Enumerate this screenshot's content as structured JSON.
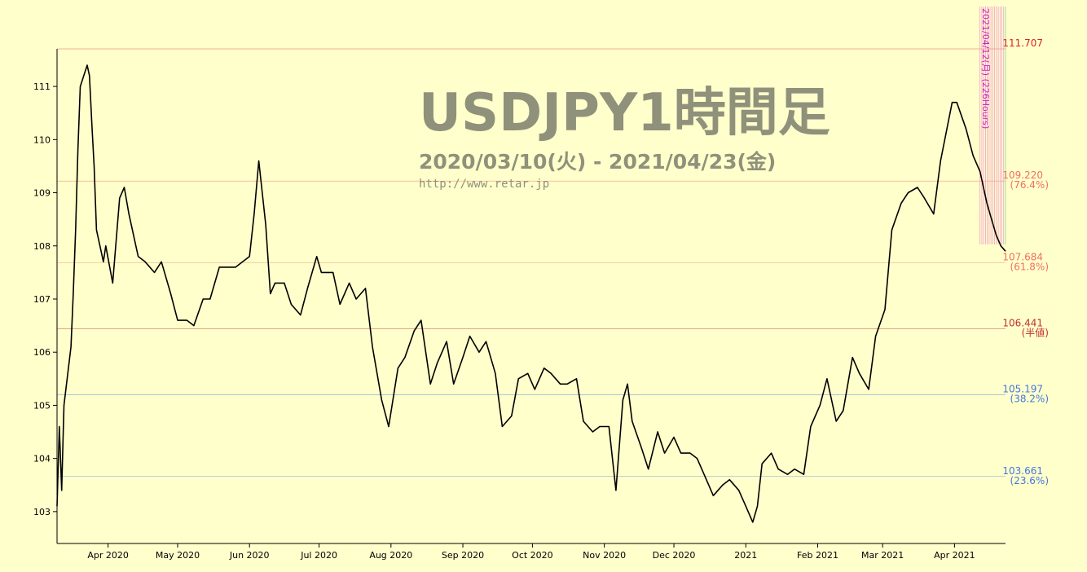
{
  "chart_data": {
    "type": "line",
    "title": "USDJPY1時間足",
    "subtitle": "2020/03/10(火) - 2021/04/23(金)",
    "url": "http://www.retar.jp",
    "xlabel": "",
    "ylabel": "",
    "x_range": [
      "2020-03-10",
      "2021-04-23"
    ],
    "ylim": [
      102.4,
      111.707
    ],
    "yticks": [
      103,
      104,
      105,
      106,
      107,
      108,
      109,
      110,
      111
    ],
    "xticks": [
      {
        "date": "2020-04-01",
        "label": "Apr 2020"
      },
      {
        "date": "2020-05-01",
        "label": "May 2020"
      },
      {
        "date": "2020-06-01",
        "label": "Jun 2020"
      },
      {
        "date": "2020-07-01",
        "label": "Jul 2020"
      },
      {
        "date": "2020-08-01",
        "label": "Aug 2020"
      },
      {
        "date": "2020-09-01",
        "label": "Sep 2020"
      },
      {
        "date": "2020-10-01",
        "label": "Oct 2020"
      },
      {
        "date": "2020-11-01",
        "label": "Nov 2020"
      },
      {
        "date": "2020-12-01",
        "label": "Dec 2020"
      },
      {
        "date": "2021-01-01",
        "label": "2021"
      },
      {
        "date": "2021-02-01",
        "label": "Feb 2021"
      },
      {
        "date": "2021-03-01",
        "label": "Mar 2021"
      },
      {
        "date": "2021-04-01",
        "label": "Apr 2021"
      }
    ],
    "levels": [
      {
        "value": 111.707,
        "label": "111.707",
        "pct": "",
        "color": "#dd2222"
      },
      {
        "value": 109.22,
        "label": "109.220",
        "pct": "(76.4%)",
        "color": "#f07060"
      },
      {
        "value": 107.684,
        "label": "107.684",
        "pct": "(61.8%)",
        "color": "#f07060"
      },
      {
        "value": 106.441,
        "label": "106.441",
        "pct": "(半値)",
        "color": "#c03030"
      },
      {
        "value": 105.197,
        "label": "105.197",
        "pct": "(38.2%)",
        "color": "#4477dd"
      },
      {
        "value": 103.661,
        "label": "103.661",
        "pct": "(23.6%)",
        "color": "#4477dd"
      }
    ],
    "annotation": "2021/04/12(月) (226Hours)",
    "series": [
      {
        "color": "#000000",
        "points": [
          [
            "2020-03-10",
            103.1
          ],
          [
            "2020-03-11",
            104.6
          ],
          [
            "2020-03-12",
            103.4
          ],
          [
            "2020-03-13",
            105.0
          ],
          [
            "2020-03-16",
            106.1
          ],
          [
            "2020-03-17",
            107.1
          ],
          [
            "2020-03-18",
            108.3
          ],
          [
            "2020-03-19",
            109.8
          ],
          [
            "2020-03-20",
            111.0
          ],
          [
            "2020-03-23",
            111.4
          ],
          [
            "2020-03-24",
            111.2
          ],
          [
            "2020-03-25",
            110.3
          ],
          [
            "2020-03-26",
            109.5
          ],
          [
            "2020-03-27",
            108.3
          ],
          [
            "2020-03-30",
            107.7
          ],
          [
            "2020-03-31",
            108.0
          ],
          [
            "2020-04-03",
            107.3
          ],
          [
            "2020-04-06",
            108.9
          ],
          [
            "2020-04-08",
            109.1
          ],
          [
            "2020-04-10",
            108.6
          ],
          [
            "2020-04-14",
            107.8
          ],
          [
            "2020-04-17",
            107.7
          ],
          [
            "2020-04-21",
            107.5
          ],
          [
            "2020-04-24",
            107.7
          ],
          [
            "2020-04-28",
            107.1
          ],
          [
            "2020-05-01",
            106.6
          ],
          [
            "2020-05-05",
            106.6
          ],
          [
            "2020-05-08",
            106.5
          ],
          [
            "2020-05-12",
            107.0
          ],
          [
            "2020-05-15",
            107.0
          ],
          [
            "2020-05-19",
            107.6
          ],
          [
            "2020-05-22",
            107.6
          ],
          [
            "2020-05-26",
            107.6
          ],
          [
            "2020-05-29",
            107.7
          ],
          [
            "2020-06-01",
            107.8
          ],
          [
            "2020-06-03",
            108.6
          ],
          [
            "2020-06-05",
            109.6
          ],
          [
            "2020-06-08",
            108.4
          ],
          [
            "2020-06-10",
            107.1
          ],
          [
            "2020-06-12",
            107.3
          ],
          [
            "2020-06-16",
            107.3
          ],
          [
            "2020-06-19",
            106.9
          ],
          [
            "2020-06-23",
            106.7
          ],
          [
            "2020-06-26",
            107.2
          ],
          [
            "2020-06-30",
            107.8
          ],
          [
            "2020-07-02",
            107.5
          ],
          [
            "2020-07-07",
            107.5
          ],
          [
            "2020-07-10",
            106.9
          ],
          [
            "2020-07-14",
            107.3
          ],
          [
            "2020-07-17",
            107.0
          ],
          [
            "2020-07-21",
            107.2
          ],
          [
            "2020-07-24",
            106.1
          ],
          [
            "2020-07-28",
            105.1
          ],
          [
            "2020-07-31",
            104.6
          ],
          [
            "2020-08-04",
            105.7
          ],
          [
            "2020-08-07",
            105.9
          ],
          [
            "2020-08-11",
            106.4
          ],
          [
            "2020-08-14",
            106.6
          ],
          [
            "2020-08-18",
            105.4
          ],
          [
            "2020-08-21",
            105.8
          ],
          [
            "2020-08-25",
            106.2
          ],
          [
            "2020-08-28",
            105.4
          ],
          [
            "2020-09-01",
            105.9
          ],
          [
            "2020-09-04",
            106.3
          ],
          [
            "2020-09-08",
            106.0
          ],
          [
            "2020-09-11",
            106.2
          ],
          [
            "2020-09-15",
            105.6
          ],
          [
            "2020-09-18",
            104.6
          ],
          [
            "2020-09-22",
            104.8
          ],
          [
            "2020-09-25",
            105.5
          ],
          [
            "2020-09-29",
            105.6
          ],
          [
            "2020-10-02",
            105.3
          ],
          [
            "2020-10-06",
            105.7
          ],
          [
            "2020-10-09",
            105.6
          ],
          [
            "2020-10-13",
            105.4
          ],
          [
            "2020-10-16",
            105.4
          ],
          [
            "2020-10-20",
            105.5
          ],
          [
            "2020-10-23",
            104.7
          ],
          [
            "2020-10-27",
            104.5
          ],
          [
            "2020-10-30",
            104.6
          ],
          [
            "2020-11-03",
            104.6
          ],
          [
            "2020-11-06",
            103.4
          ],
          [
            "2020-11-09",
            105.1
          ],
          [
            "2020-11-11",
            105.4
          ],
          [
            "2020-11-13",
            104.7
          ],
          [
            "2020-11-17",
            104.2
          ],
          [
            "2020-11-20",
            103.8
          ],
          [
            "2020-11-24",
            104.5
          ],
          [
            "2020-11-27",
            104.1
          ],
          [
            "2020-12-01",
            104.4
          ],
          [
            "2020-12-04",
            104.1
          ],
          [
            "2020-12-08",
            104.1
          ],
          [
            "2020-12-11",
            104.0
          ],
          [
            "2020-12-15",
            103.6
          ],
          [
            "2020-12-18",
            103.3
          ],
          [
            "2020-12-22",
            103.5
          ],
          [
            "2020-12-25",
            103.6
          ],
          [
            "2020-12-29",
            103.4
          ],
          [
            "2021-01-01",
            103.1
          ],
          [
            "2021-01-04",
            102.8
          ],
          [
            "2021-01-06",
            103.1
          ],
          [
            "2021-01-08",
            103.9
          ],
          [
            "2021-01-12",
            104.1
          ],
          [
            "2021-01-15",
            103.8
          ],
          [
            "2021-01-19",
            103.7
          ],
          [
            "2021-01-22",
            103.8
          ],
          [
            "2021-01-26",
            103.7
          ],
          [
            "2021-01-29",
            104.6
          ],
          [
            "2021-02-02",
            105.0
          ],
          [
            "2021-02-05",
            105.5
          ],
          [
            "2021-02-09",
            104.7
          ],
          [
            "2021-02-12",
            104.9
          ],
          [
            "2021-02-16",
            105.9
          ],
          [
            "2021-02-19",
            105.6
          ],
          [
            "2021-02-23",
            105.3
          ],
          [
            "2021-02-26",
            106.3
          ],
          [
            "2021-03-02",
            106.8
          ],
          [
            "2021-03-05",
            108.3
          ],
          [
            "2021-03-09",
            108.8
          ],
          [
            "2021-03-12",
            109.0
          ],
          [
            "2021-03-16",
            109.1
          ],
          [
            "2021-03-19",
            108.9
          ],
          [
            "2021-03-23",
            108.6
          ],
          [
            "2021-03-26",
            109.6
          ],
          [
            "2021-03-31",
            110.7
          ],
          [
            "2021-04-02",
            110.7
          ],
          [
            "2021-04-06",
            110.2
          ],
          [
            "2021-04-09",
            109.7
          ],
          [
            "2021-04-12",
            109.4
          ],
          [
            "2021-04-15",
            108.8
          ],
          [
            "2021-04-19",
            108.2
          ],
          [
            "2021-04-21",
            108.0
          ],
          [
            "2021-04-23",
            107.9
          ]
        ]
      }
    ]
  }
}
